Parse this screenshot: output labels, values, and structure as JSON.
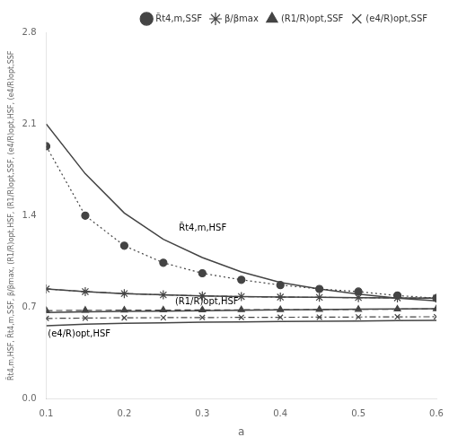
{
  "chart_data": {
    "type": "line",
    "x_label": "a",
    "y_label": "R̃t4,m,HSF, R̃t4,m,SSF, β/βmax, (R1/R)opt,HSF, (R1/R)opt,SSF, (e4/R)opt,HSF, (e4/R)opt,SSF",
    "x": [
      0.1,
      0.15,
      0.2,
      0.25,
      0.3,
      0.35,
      0.4,
      0.45,
      0.5,
      0.55,
      0.6
    ],
    "color": "#444444",
    "series": [
      {
        "values": [
          2.1,
          1.72,
          1.42,
          1.22,
          1.08,
          0.97,
          0.89,
          0.84,
          0.8,
          0.77,
          0.75
        ],
        "line_style": "solid"
      },
      {
        "values": [
          0.84,
          0.82,
          0.805,
          0.795,
          0.787,
          0.782,
          0.778,
          0.776,
          0.774,
          0.772,
          0.77
        ],
        "line_style": "solid"
      },
      {
        "values": [
          0.66,
          0.665,
          0.668,
          0.671,
          0.674,
          0.677,
          0.68,
          0.683,
          0.686,
          0.688,
          0.69
        ],
        "line_style": "solid"
      },
      {
        "values": [
          0.56,
          0.572,
          0.578,
          0.582,
          0.586,
          0.589,
          0.592,
          0.594,
          0.596,
          0.598,
          0.6
        ],
        "line_style": "solid"
      },
      {
        "name": "R̃t4,m,SSF",
        "values": [
          1.93,
          1.4,
          1.17,
          1.04,
          0.96,
          0.91,
          0.87,
          0.84,
          0.82,
          0.79,
          0.77
        ],
        "line_style": "dotted",
        "marker": "circle"
      },
      {
        "name": "β/βmax",
        "values": [
          0.84,
          0.82,
          0.805,
          0.795,
          0.787,
          0.782,
          0.778,
          0.776,
          0.774,
          0.772,
          0.77
        ],
        "line_style": "dashdot",
        "marker": "star"
      },
      {
        "name": "(R1/R)opt,SSF",
        "values": [
          0.675,
          0.677,
          0.678,
          0.679,
          0.68,
          0.681,
          0.682,
          0.683,
          0.684,
          0.686,
          0.688
        ],
        "line_style": "dashed",
        "marker": "triangle"
      },
      {
        "name": "(e4/R)opt,SSF",
        "values": [
          0.615,
          0.618,
          0.62,
          0.621,
          0.622,
          0.623,
          0.624,
          0.625,
          0.626,
          0.627,
          0.628
        ],
        "line_style": "dashdot",
        "marker": "x"
      }
    ],
    "annotations": [
      {
        "text": "R̃t4,m,HSF",
        "x": 0.27,
        "y": 1.27
      },
      {
        "text": "(R1/R)opt,HSF",
        "x": 0.265,
        "y": 0.705
      },
      {
        "text": "(e4/R)opt,HSF",
        "x": 0.102,
        "y": 0.527
      }
    ],
    "xlim": [
      0.1,
      0.6
    ],
    "ylim": [
      0.0,
      2.8
    ],
    "xticks": [
      0.1,
      0.2,
      0.3,
      0.4,
      0.5,
      0.6
    ],
    "yticks": [
      {
        "value": 0.0,
        "label": "0.0"
      },
      0.7,
      1.4,
      2.1,
      2.8
    ],
    "grid": false,
    "legend": "upper right"
  }
}
